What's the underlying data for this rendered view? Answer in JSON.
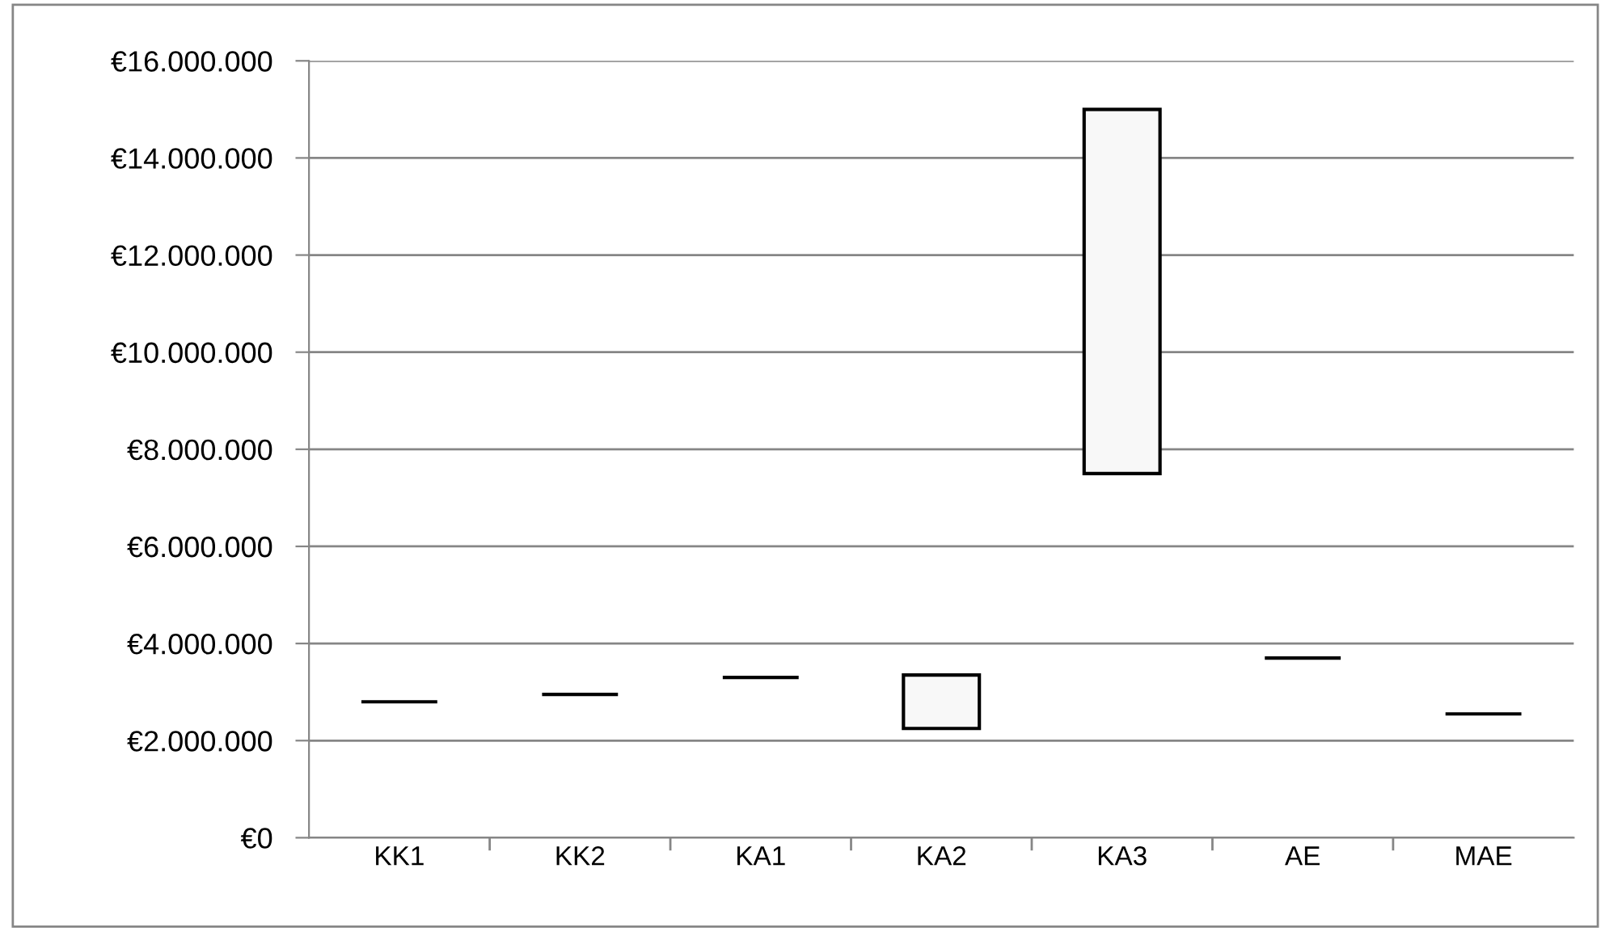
{
  "chart_data": {
    "type": "bar",
    "categories": [
      "KK1",
      "KK2",
      "KA1",
      "KA2",
      "KA3",
      "AE",
      "MAE"
    ],
    "values": [
      0,
      0,
      0,
      1100000,
      7500000,
      0,
      0
    ],
    "base": [
      2800000,
      2950000,
      3300000,
      2250000,
      7500000,
      3700000,
      2550000
    ],
    "colors": [
      "#000000",
      "#000000",
      "#000000",
      "#f8f8f8",
      "#f8f8f8",
      "#000000",
      "#000000"
    ],
    "ylim": [
      0,
      16000000
    ],
    "yticks": [
      {
        "value": 0,
        "label": "€0"
      },
      {
        "value": 2000000,
        "label": "€2.000.000"
      },
      {
        "value": 4000000,
        "label": "€4.000.000"
      },
      {
        "value": 6000000,
        "label": "€6.000.000"
      },
      {
        "value": 8000000,
        "label": "€8.000.000"
      },
      {
        "value": 10000000,
        "label": "€10.000.000"
      },
      {
        "value": 12000000,
        "label": "€12.000.000"
      },
      {
        "value": 14000000,
        "label": "€14.000.000"
      },
      {
        "value": 16000000,
        "label": "€16.000.000"
      }
    ],
    "grid": "y"
  }
}
